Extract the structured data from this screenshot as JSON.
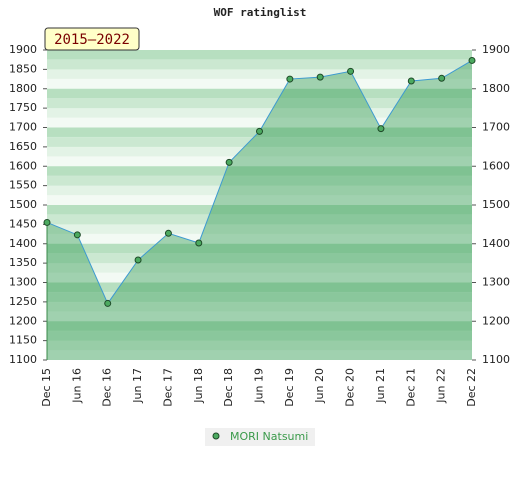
{
  "chart_data": {
    "type": "area",
    "title": "WOF ratinglist",
    "annotation": "2015–2022",
    "categories": [
      "Dec 15",
      "Jun 16",
      "Dec 16",
      "Jun 17",
      "Dec 17",
      "Jun 18",
      "Dec 18",
      "Jun 19",
      "Dec 19",
      "Jun 20",
      "Dec 20",
      "Jun 21",
      "Dec 21",
      "Jun 22",
      "Dec 22"
    ],
    "series": [
      {
        "name": "MORI Natsumi",
        "color": "#3d9ad1",
        "values": [
          1455,
          1423,
          1246,
          1358,
          1427,
          1402,
          1610,
          1690,
          1825,
          1830,
          1845,
          1697,
          1820,
          1827,
          1873
        ]
      }
    ],
    "ylim": [
      1100,
      1900
    ],
    "yticks": [
      1100,
      1150,
      1200,
      1250,
      1300,
      1350,
      1400,
      1450,
      1500,
      1550,
      1600,
      1650,
      1700,
      1750,
      1800,
      1850,
      1900
    ],
    "y2lim": [
      1100,
      1900
    ],
    "y2ticks": [
      1100,
      1200,
      1300,
      1400,
      1500,
      1600,
      1700,
      1800,
      1900
    ],
    "legend": "bottom"
  }
}
